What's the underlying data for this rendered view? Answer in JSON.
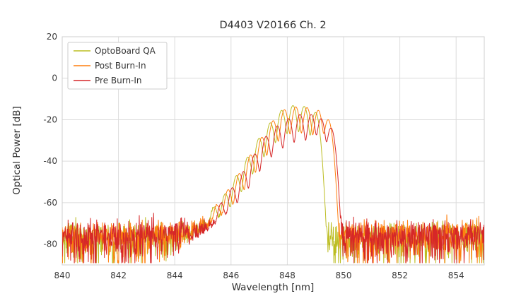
{
  "chart_data": {
    "type": "line",
    "title": "D4403 V20166 Ch. 2",
    "xlabel": "Wavelength [nm]",
    "ylabel": "Optical Power [dB]",
    "xlim": [
      840,
      855
    ],
    "ylim": [
      -90,
      20
    ],
    "xticks": [
      840,
      842,
      844,
      846,
      848,
      850,
      852,
      854
    ],
    "yticks": [
      20,
      0,
      -20,
      -40,
      -60,
      -80
    ],
    "grid": true,
    "legend_position": "upper left",
    "mode_sigma_nm": 0.075,
    "noise_band_db": [
      -86,
      -68
    ],
    "series": [
      {
        "name": "OptoBoard QA",
        "color": "#bcbd22",
        "seed": 101,
        "noise_floor_db": -75.5,
        "pedestal": {
          "center": 847.8,
          "peak_db": -61,
          "sigma_left": 1.15,
          "sigma_right": 0.5
        },
        "modes": [
          [
            845.4,
            -63
          ],
          [
            845.8,
            -56
          ],
          [
            846.2,
            -47
          ],
          [
            846.6,
            -38
          ],
          [
            847.0,
            -29
          ],
          [
            847.4,
            -21.5
          ],
          [
            847.8,
            -15.5
          ],
          [
            848.2,
            -13.2
          ],
          [
            848.6,
            -13.6
          ],
          [
            849.0,
            -16.5
          ]
        ]
      },
      {
        "name": "Post Burn-In",
        "color": "#ff7f0e",
        "seed": 202,
        "noise_floor_db": -75,
        "pedestal": {
          "center": 847.9,
          "peak_db": -60,
          "sigma_left": 1.15,
          "sigma_right": 0.55
        },
        "modes": [
          [
            845.5,
            -62
          ],
          [
            845.9,
            -54
          ],
          [
            846.3,
            -46
          ],
          [
            846.7,
            -37
          ],
          [
            847.1,
            -28.5
          ],
          [
            847.5,
            -20.5
          ],
          [
            847.9,
            -15.2
          ],
          [
            848.3,
            -13.8
          ],
          [
            848.7,
            -14.2
          ],
          [
            849.1,
            -15.5
          ],
          [
            849.45,
            -20
          ]
        ]
      },
      {
        "name": "Pre Burn-In",
        "color": "#d62728",
        "seed": 303,
        "noise_floor_db": -74.5,
        "pedestal": {
          "center": 848.05,
          "peak_db": -60,
          "sigma_left": 1.15,
          "sigma_right": 0.55
        },
        "modes": [
          [
            845.65,
            -61
          ],
          [
            846.05,
            -53
          ],
          [
            846.45,
            -45
          ],
          [
            846.85,
            -36.5
          ],
          [
            847.25,
            -28
          ],
          [
            847.65,
            -23
          ],
          [
            848.05,
            -19.5
          ],
          [
            848.45,
            -17.5
          ],
          [
            848.85,
            -17.5
          ],
          [
            849.2,
            -19.5
          ],
          [
            849.55,
            -24
          ]
        ]
      }
    ]
  }
}
